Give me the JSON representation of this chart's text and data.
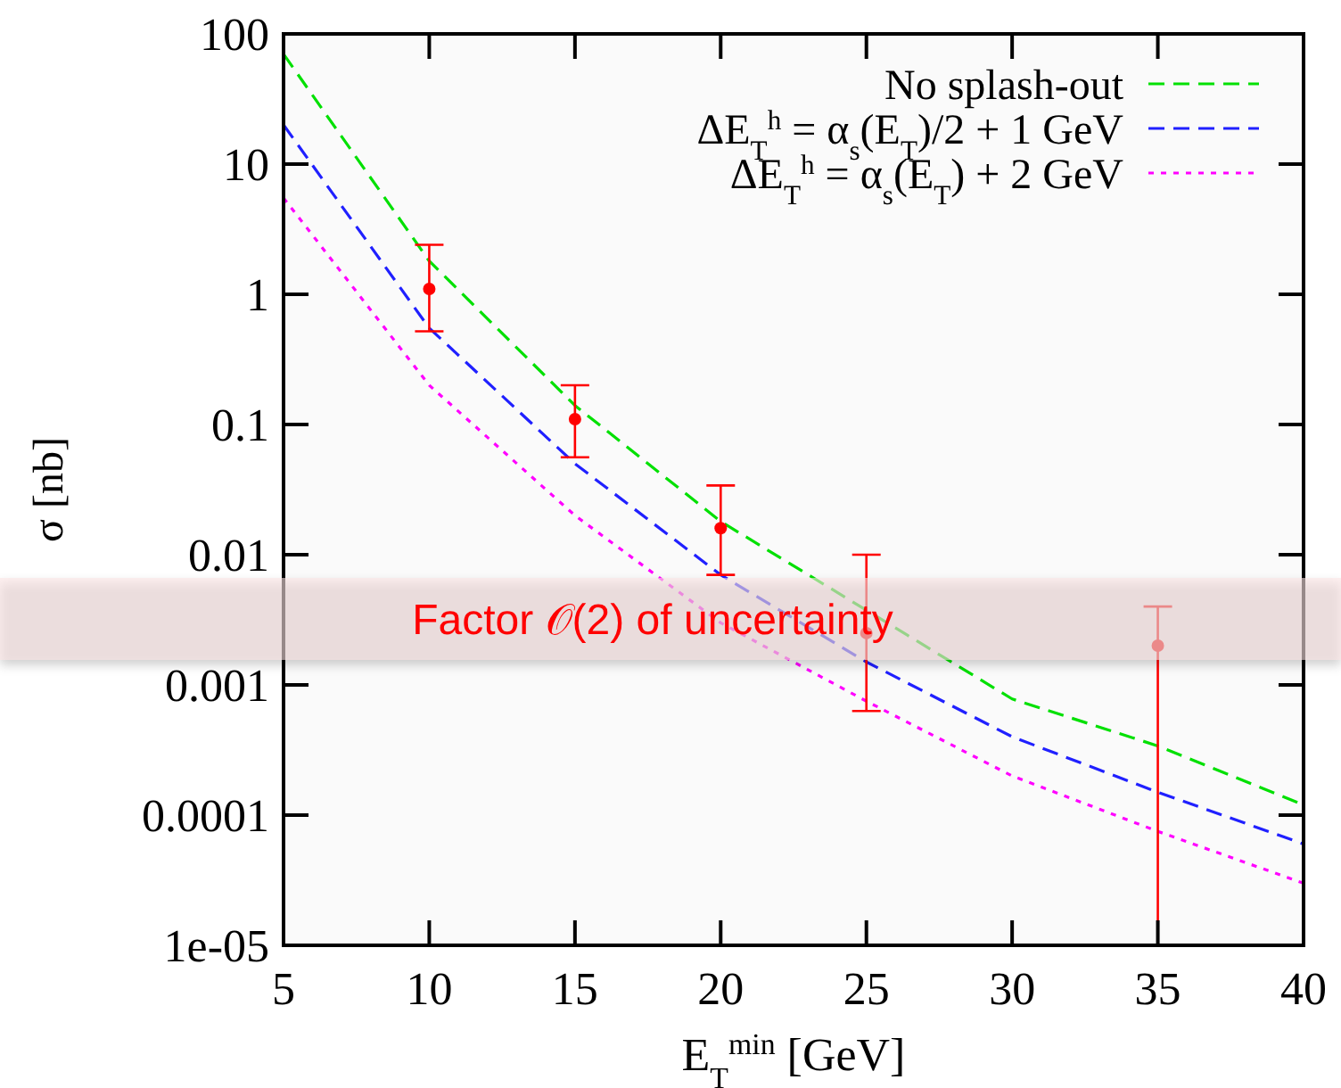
{
  "chart_data": {
    "type": "line",
    "xlabel": "E$_{T}$$^{min}$ [GeV]",
    "ylabel": "σ [nb]",
    "log": "y",
    "xlim": [
      5,
      40
    ],
    "xticks": [
      5,
      10,
      15,
      20,
      25,
      30,
      35,
      40
    ],
    "ylim": [
      1e-05,
      100
    ],
    "yticks": [
      100,
      10,
      1,
      0.1,
      0.01,
      0.001,
      0.0001,
      {
        "value": 1e-05,
        "label": "1e-05"
      }
    ],
    "grid": false,
    "legend": "top right",
    "annotations": [
      "Factor 𝒪(2) of uncertainty"
    ],
    "series": [
      {
        "name": "No splash-out",
        "color": "#00e000",
        "line_style": "dashed",
        "x": [
          5,
          10,
          15,
          20,
          30,
          35,
          40
        ],
        "values": [
          70,
          1.8,
          0.14,
          0.018,
          0.00078,
          0.00034,
          0.00012
        ]
      },
      {
        "name": "ΔE$_{T}$$^{h}$ = α$_{s}$(E$_{T}$)/2 + 1 GeV",
        "color": "#2020ff",
        "line_style": "dashed",
        "x": [
          5,
          10,
          15,
          20,
          25,
          30,
          35,
          40
        ],
        "values": [
          20,
          0.55,
          0.05,
          0.007,
          0.0015,
          0.0004,
          0.00015,
          6e-05
        ]
      },
      {
        "name": "ΔE$_{T}$$^{h}$ = α$_{s}$(E$_{T}$) + 2 GeV",
        "color": "#ff00ff",
        "line_style": "dotted",
        "x": [
          5,
          10,
          15,
          20,
          25,
          30,
          35,
          40
        ],
        "values": [
          5.5,
          0.2,
          0.02,
          0.003,
          0.00075,
          0.0002,
          7.5e-05,
          3e-05
        ]
      },
      {
        "type": "scatter",
        "color": "#ff0000",
        "marker": "circle",
        "x": [
          10,
          15,
          20,
          25,
          35
        ],
        "values": [
          1.1,
          0.11,
          0.016,
          0.0025,
          0.002
        ],
        "errors": [
          [
            0.52,
            2.4
          ],
          [
            0.056,
            0.2
          ],
          [
            0.007,
            0.034
          ],
          [
            0.00063,
            0.01
          ],
          [
            1e-05,
            0.004
          ]
        ]
      }
    ]
  }
}
